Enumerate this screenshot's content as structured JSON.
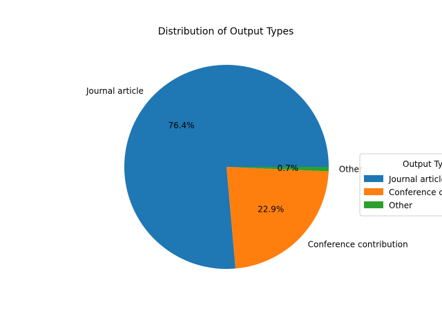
{
  "chart_data": {
    "type": "pie",
    "title": "Distribution of Output Types",
    "categories": [
      "Journal article",
      "Conference contribution",
      "Other"
    ],
    "values": [
      76.4,
      22.9,
      0.7
    ],
    "percent_labels": [
      "76.4%",
      "22.9%",
      "0.7%"
    ],
    "colors": [
      "#1f77b4",
      "#ff7f0e",
      "#2ca02c"
    ],
    "start_angle_deg": 0,
    "direction": "counterclockwise",
    "legend": {
      "title": "Output Types",
      "placement": "right",
      "entries": [
        "Journal article",
        "Conference contribution",
        "Other"
      ]
    }
  }
}
